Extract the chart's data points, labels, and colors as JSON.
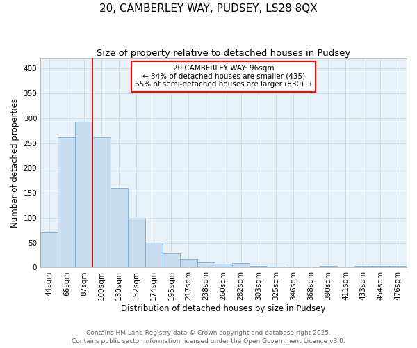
{
  "title1": "20, CAMBERLEY WAY, PUDSEY, LS28 8QX",
  "title2": "Size of property relative to detached houses in Pudsey",
  "xlabel": "Distribution of detached houses by size in Pudsey",
  "ylabel": "Number of detached properties",
  "bin_labels": [
    "44sqm",
    "66sqm",
    "87sqm",
    "109sqm",
    "130sqm",
    "152sqm",
    "174sqm",
    "195sqm",
    "217sqm",
    "238sqm",
    "260sqm",
    "282sqm",
    "303sqm",
    "325sqm",
    "346sqm",
    "368sqm",
    "390sqm",
    "411sqm",
    "433sqm",
    "454sqm",
    "476sqm"
  ],
  "bar_heights": [
    70,
    262,
    293,
    262,
    160,
    99,
    48,
    28,
    18,
    10,
    8,
    9,
    3,
    2,
    1,
    0,
    4,
    0,
    4,
    3,
    4
  ],
  "bar_color": "#c8dcf0",
  "bar_edge_color": "#7aaed6",
  "vline_x": 2.5,
  "vline_color": "#cc0000",
  "ylim": [
    0,
    420
  ],
  "yticks": [
    0,
    50,
    100,
    150,
    200,
    250,
    300,
    350,
    400
  ],
  "grid_color": "#d0dce8",
  "bg_color": "#e8f0f8",
  "annotation_text": "20 CAMBERLEY WAY: 96sqm\n← 34% of detached houses are smaller (435)\n65% of semi-detached houses are larger (830) →",
  "footer1": "Contains HM Land Registry data © Crown copyright and database right 2025.",
  "footer2": "Contains public sector information licensed under the Open Government Licence v3.0.",
  "title_fontsize": 11,
  "subtitle_fontsize": 9.5,
  "axis_label_fontsize": 8.5,
  "tick_fontsize": 7.5,
  "annotation_fontsize": 7.5,
  "footer_fontsize": 6.5
}
